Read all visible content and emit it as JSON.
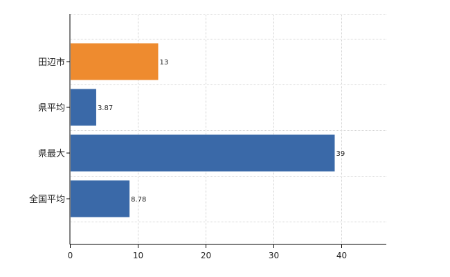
{
  "chart_data": {
    "type": "bar",
    "orientation": "horizontal",
    "categories": [
      "田辺市",
      "県平均",
      "県最大",
      "全国平均"
    ],
    "values": [
      13,
      3.87,
      39,
      8.78
    ],
    "data_labels": [
      "13",
      "3.87",
      "39",
      "8.78"
    ],
    "colors": [
      "#EE8B2F",
      "#3A69A8",
      "#3A69A8",
      "#3A69A8"
    ],
    "title": "",
    "xlabel": "",
    "ylabel": "",
    "xlim": [
      0,
      46.6
    ],
    "x_ticks": [
      0,
      10,
      20,
      30,
      40
    ],
    "x_tick_labels": [
      "0",
      "10",
      "20",
      "30",
      "40"
    ],
    "grid": true,
    "grid_style": "dotted",
    "legend": "none"
  }
}
